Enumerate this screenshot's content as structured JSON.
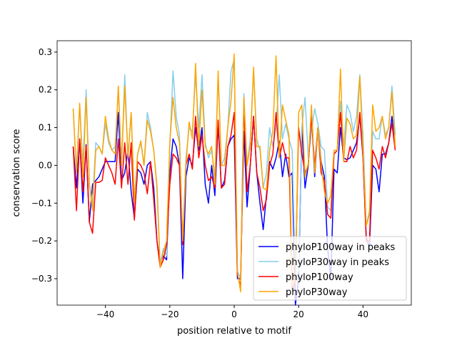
{
  "chart_data": {
    "type": "line",
    "title": "",
    "xlabel": "position relative to motif",
    "ylabel": "conservation score",
    "xlim": [
      -55,
      55
    ],
    "ylim": [
      -0.37,
      0.33
    ],
    "xticks": [
      -40,
      -20,
      0,
      20,
      40
    ],
    "xtick_labels": [
      "−40",
      "−20",
      "0",
      "20",
      "40"
    ],
    "yticks": [
      -0.3,
      -0.2,
      -0.1,
      0.0,
      0.1,
      0.2,
      0.3
    ],
    "ytick_labels": [
      "−0.3",
      "−0.2",
      "−0.1",
      "0.0",
      "0.1",
      "0.2",
      "0.3"
    ],
    "legend_position": "lower-right",
    "x_start": -50,
    "series": [
      {
        "name": "phyloP100way in peaks",
        "color": "#0000ff",
        "values": [
          0.05,
          -0.06,
          0.07,
          -0.1,
          0.055,
          -0.15,
          -0.05,
          -0.04,
          -0.03,
          -0.01,
          0.01,
          0.01,
          0.01,
          0.01,
          0.14,
          -0.04,
          -0.02,
          0.04,
          -0.07,
          -0.14,
          -0.01,
          -0.02,
          -0.05,
          0.0,
          0.01,
          -0.06,
          -0.2,
          -0.26,
          -0.24,
          -0.25,
          -0.02,
          0.07,
          0.05,
          0.0,
          -0.3,
          -0.03,
          0.02,
          0.0,
          0.1,
          0.04,
          0.1,
          -0.05,
          -0.1,
          0.0,
          -0.08,
          0.11,
          -0.06,
          -0.04,
          0.05,
          0.07,
          0.08,
          -0.3,
          -0.3,
          0.09,
          -0.11,
          0.0,
          0.13,
          -0.02,
          -0.1,
          -0.17,
          -0.08,
          0.01,
          -0.01,
          0.02,
          0.065,
          -0.03,
          0.03,
          -0.03,
          -0.02,
          -0.37,
          -0.3,
          0.1,
          -0.06,
          0.0,
          0.14,
          -0.03,
          0.1,
          0.01,
          -0.03,
          -0.22,
          -0.3,
          -0.01,
          -0.02,
          0.1,
          0.02,
          0.015,
          0.02,
          0.04,
          0.06,
          0.13,
          0.02,
          -0.19,
          -0.22,
          0.0,
          -0.01,
          -0.07,
          0.03,
          0.03,
          0.06,
          0.13,
          0.05
        ]
      },
      {
        "name": "phyloP30way in peaks",
        "color": "#87ceeb",
        "values": [
          0.15,
          -0.02,
          0.16,
          0.0,
          0.2,
          -0.05,
          -0.1,
          0.06,
          0.05,
          0.03,
          0.11,
          0.06,
          0.04,
          0.05,
          0.2,
          0.0,
          0.24,
          0.02,
          0.14,
          -0.09,
          0.03,
          0.06,
          0.0,
          0.14,
          0.1,
          0.04,
          -0.05,
          -0.26,
          -0.22,
          -0.24,
          0.05,
          0.25,
          0.13,
          0.08,
          -0.2,
          0.02,
          0.1,
          0.09,
          0.24,
          0.1,
          0.24,
          0.06,
          0.02,
          0.04,
          -0.03,
          0.24,
          0.0,
          0.02,
          0.1,
          0.25,
          0.28,
          -0.28,
          -0.3,
          0.19,
          0.0,
          0.07,
          0.25,
          0.07,
          0.04,
          -0.06,
          -0.02,
          0.1,
          0.05,
          0.1,
          0.24,
          0.07,
          0.11,
          0.07,
          0.04,
          -0.3,
          -0.28,
          0.1,
          0.18,
          0.02,
          0.09,
          0.15,
          0.11,
          0.05,
          0.04,
          -0.11,
          -0.12,
          0.03,
          0.04,
          0.17,
          0.05,
          0.16,
          0.14,
          0.09,
          0.13,
          0.24,
          0.08,
          -0.16,
          -0.12,
          0.09,
          0.07,
          0.07,
          0.13,
          0.08,
          0.1,
          0.21,
          0.08
        ]
      },
      {
        "name": "phyloP100way",
        "color": "#ff0000",
        "values": [
          0.05,
          -0.12,
          0.07,
          -0.07,
          0.05,
          -0.15,
          -0.18,
          -0.045,
          -0.045,
          -0.04,
          0.02,
          0.0,
          -0.02,
          -0.05,
          0.07,
          -0.06,
          0.06,
          -0.05,
          0.06,
          -0.145,
          0.01,
          0.0,
          -0.02,
          -0.075,
          0.01,
          -0.09,
          -0.2,
          -0.27,
          -0.25,
          -0.21,
          -0.05,
          0.03,
          0.02,
          0.0,
          -0.21,
          0.0,
          0.03,
          -0.01,
          0.13,
          0.02,
          0.08,
          0.0,
          -0.04,
          -0.03,
          -0.06,
          0.12,
          -0.06,
          -0.05,
          0.05,
          0.08,
          0.14,
          -0.29,
          -0.32,
          0.16,
          -0.07,
          0.0,
          0.13,
          -0.02,
          -0.06,
          -0.12,
          -0.09,
          0.0,
          0.03,
          0.14,
          0.02,
          0.06,
          0.02,
          0.02,
          -0.33,
          -0.3,
          0.1,
          0.03,
          -0.02,
          0.0,
          0.13,
          0.0,
          0.1,
          -0.02,
          -0.04,
          -0.13,
          -0.14,
          0.03,
          0.04,
          0.14,
          0.01,
          0.01,
          0.05,
          0.02,
          0.04,
          0.14,
          0.02,
          -0.2,
          -0.2,
          0.04,
          0.02,
          -0.01,
          0.05,
          0.02,
          0.06,
          0.11,
          0.04
        ]
      },
      {
        "name": "phyloP30way",
        "color": "#ffa500",
        "values": [
          0.15,
          -0.02,
          0.165,
          -0.03,
          0.18,
          -0.05,
          -0.12,
          0.04,
          0.05,
          0.03,
          0.13,
          0.07,
          0.04,
          0.03,
          0.21,
          0.0,
          0.21,
          0.02,
          0.14,
          -0.1,
          0.03,
          0.065,
          0.0,
          0.12,
          0.09,
          0.04,
          -0.06,
          -0.27,
          -0.23,
          -0.2,
          0.06,
          0.18,
          0.1,
          0.06,
          -0.2,
          0.0,
          0.115,
          0.07,
          0.27,
          0.05,
          0.2,
          0.05,
          0.03,
          0.05,
          -0.05,
          0.25,
          0.0,
          0.0,
          0.1,
          0.17,
          0.295,
          -0.28,
          -0.335,
          0.18,
          0.0,
          0.05,
          0.26,
          0.05,
          0.05,
          -0.06,
          -0.065,
          0.04,
          0.09,
          0.29,
          0.02,
          0.16,
          0.12,
          0.08,
          -0.32,
          -0.31,
          0.14,
          0.16,
          -0.03,
          0.005,
          0.16,
          -0.02,
          0.1,
          0.005,
          -0.07,
          -0.1,
          -0.08,
          0.04,
          0.04,
          0.255,
          0.01,
          0.125,
          0.11,
          0.07,
          0.08,
          0.235,
          0.04,
          -0.16,
          -0.13,
          0.16,
          0.09,
          0.1,
          0.13,
          0.07,
          0.1,
          0.195,
          0.05
        ]
      }
    ]
  }
}
